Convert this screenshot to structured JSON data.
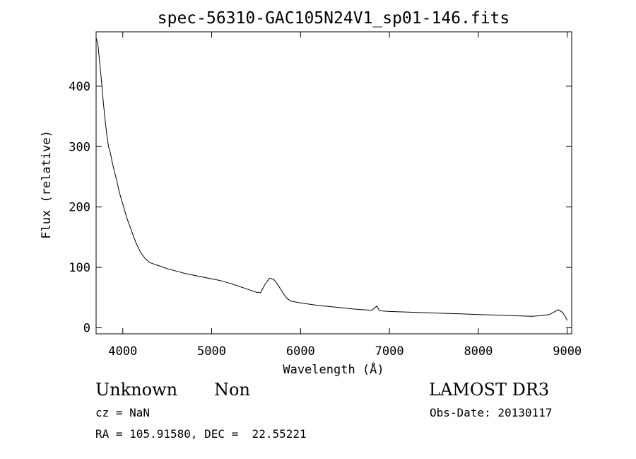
{
  "chart_data": {
    "type": "line",
    "title": "spec-56310-GAC105N24V1_sp01-146.fits",
    "xlabel": "Wavelength (Å)",
    "ylabel": "Flux (relative)",
    "xlim": [
      3700,
      9050
    ],
    "ylim": [
      -10,
      490
    ],
    "xticks": [
      4000,
      5000,
      6000,
      7000,
      8000,
      9000
    ],
    "yticks": [
      0,
      100,
      200,
      300,
      400
    ],
    "grid": false,
    "series": [
      {
        "x": [
          3700,
          3720,
          3740,
          3760,
          3780,
          3800,
          3820,
          3840,
          3860,
          3880,
          3900,
          3930,
          3960,
          4000,
          4050,
          4100,
          4150,
          4200,
          4250,
          4300,
          4400,
          4500,
          4600,
          4700,
          4800,
          4900,
          5000,
          5100,
          5200,
          5300,
          5400,
          5500,
          5550,
          5600,
          5650,
          5700,
          5750,
          5800,
          5850,
          5900,
          6000,
          6200,
          6400,
          6600,
          6800,
          6860,
          6880,
          6900,
          7000,
          7200,
          7400,
          7600,
          7800,
          8000,
          8200,
          8400,
          8600,
          8700,
          8800,
          8850,
          8900,
          8950,
          8980,
          9000
        ],
        "y": [
          480,
          470,
          440,
          410,
          375,
          345,
          320,
          300,
          290,
          275,
          262,
          245,
          225,
          205,
          180,
          160,
          140,
          125,
          115,
          108,
          103,
          98,
          94,
          90,
          87,
          84,
          81,
          78,
          74,
          69,
          64,
          59,
          58,
          72,
          82,
          80,
          70,
          58,
          48,
          44,
          41,
          37,
          34,
          31,
          29,
          36,
          30,
          28,
          27,
          26,
          25,
          24,
          23,
          22,
          21,
          20,
          19,
          20,
          22,
          26,
          30,
          25,
          18,
          12
        ]
      }
    ]
  },
  "info": {
    "classification": "Unknown",
    "subclass": "Non",
    "survey": "LAMOST DR3",
    "redshift": "cz = NaN",
    "obs_date": "Obs-Date: 20130117",
    "coordinates": "RA = 105.91580, DEC =  22.55221"
  }
}
